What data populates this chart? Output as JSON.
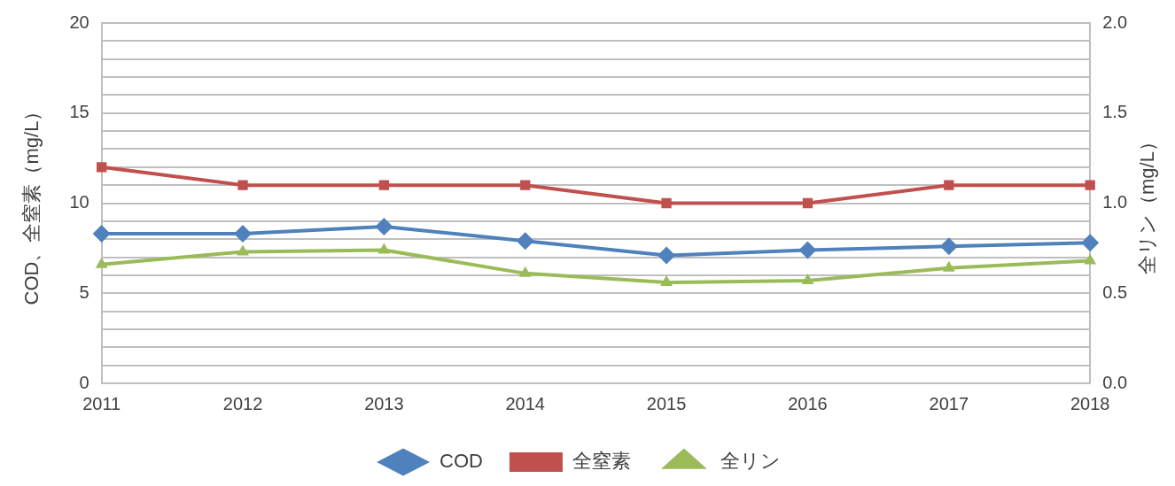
{
  "chart_data": {
    "type": "line",
    "ylabel": "COD、全窒素（mg/L）",
    "y2label": "全リン（mg/L）",
    "categories": [
      "2011",
      "2012",
      "2013",
      "2014",
      "2015",
      "2016",
      "2017",
      "2018"
    ],
    "series": [
      {
        "name": "COD",
        "color": "#4f81bd",
        "marker": "diamond",
        "values": [
          8.3,
          8.3,
          8.7,
          7.9,
          7.1,
          7.4,
          7.6,
          7.8
        ]
      },
      {
        "name": "全窒素",
        "color": "#c0504d",
        "marker": "square",
        "values": [
          12,
          11,
          11,
          11,
          10,
          10,
          11,
          11
        ]
      },
      {
        "name": "全リン",
        "color": "#9bbb59",
        "marker": "triangle",
        "axis": "y2",
        "values": [
          0.66,
          0.73,
          0.74,
          0.61,
          0.56,
          0.57,
          0.64,
          0.68
        ]
      }
    ],
    "ylim": [
      0,
      20
    ],
    "yticks": [
      0,
      {
        "value": 1,
        "label": null
      },
      {
        "value": 2,
        "label": null
      },
      {
        "value": 3,
        "label": null
      },
      {
        "value": 4,
        "label": null
      },
      5,
      {
        "value": 6,
        "label": null
      },
      {
        "value": 7,
        "label": null
      },
      {
        "value": 8,
        "label": null
      },
      {
        "value": 9,
        "label": null
      },
      10,
      {
        "value": 11,
        "label": null
      },
      {
        "value": 12,
        "label": null
      },
      {
        "value": 13,
        "label": null
      },
      {
        "value": 14,
        "label": null
      },
      15,
      {
        "value": 16,
        "label": null
      },
      {
        "value": 17,
        "label": null
      },
      {
        "value": 18,
        "label": null
      },
      {
        "value": 19,
        "label": null
      },
      20
    ],
    "y2lim": [
      0,
      2
    ],
    "y2ticks": [
      {
        "value": 0,
        "label": "0.0"
      },
      {
        "value": 0.5,
        "label": "0.5"
      },
      {
        "value": 1,
        "label": "1.0"
      },
      {
        "value": 1.5,
        "label": "1.5"
      },
      {
        "value": 2,
        "label": "2.0"
      }
    ],
    "grid": "y",
    "legend": "bottom",
    "line_style": "solid"
  }
}
